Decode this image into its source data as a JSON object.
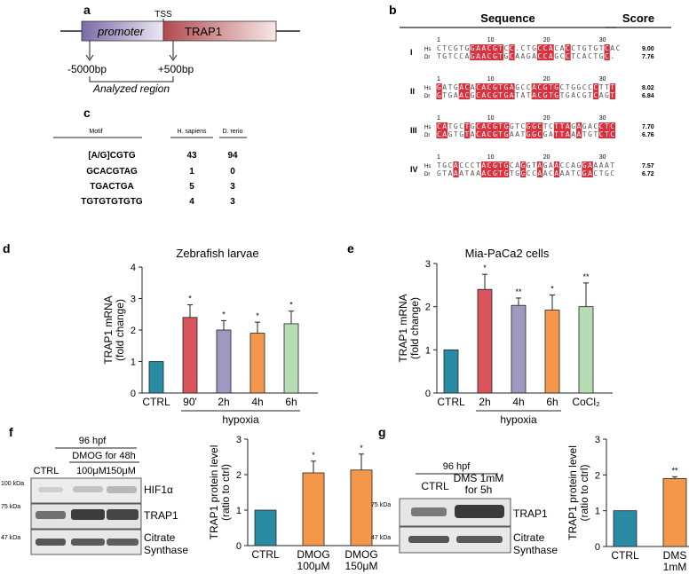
{
  "panels": {
    "a": {
      "letter": "a",
      "tss": "TSS",
      "promoter": "promoter",
      "gene": "TRAP1",
      "left_bp": "-5000bp",
      "right_bp": "+500bp",
      "region": "Analyzed region"
    },
    "b": {
      "letter": "b",
      "col_sequence": "Sequence",
      "col_score": "Score",
      "tick_labels": [
        "1",
        "10",
        "20",
        "30"
      ],
      "blocks": [
        {
          "roman": "I",
          "hs_label": "Hs",
          "dr_label": "Dr",
          "hs_seq": "CTCGTGGAACGTCC.CTGCCACACCTGTGTCAC",
          "dr_seq": "TGTCCAGAACGTGCAAGACCAGCCTCACTGC.",
          "hs_score": "9.00",
          "dr_score": "7.76"
        },
        {
          "roman": "II",
          "hs_label": "Hs",
          "dr_label": "Dr",
          "hs_seq": "GATGACACACGTGAGCCACGTGCTGGCCCTTT",
          "dr_seq": "GTGAACGCACGTGATATACGTGTGACGTCAGT",
          "hs_score": "8.02",
          "dr_score": "6.84"
        },
        {
          "roman": "III",
          "hs_label": "Hs",
          "dr_label": "Dr",
          "hs_seq": "CATGCTGCACGTGGTCGGCTCTTAGAGACCTC",
          "dr_seq": "CAGTGTACACGTGAATGGCGATTAAATGTCTC",
          "hs_score": "7.70",
          "dr_score": "6.76"
        },
        {
          "roman": "IV",
          "hs_label": "Hs",
          "dr_label": "Dr",
          "hs_seq": "TGCACCCTACGTGCAGGTAGAACCAGGAAAAT",
          "dr_seq": "GTAAATAAACGTGTGGCCAACAAATCGACTGC",
          "hs_score": "7.57",
          "dr_score": "6.72"
        }
      ]
    },
    "c": {
      "letter": "c",
      "headers": [
        "Motif",
        "H. sapiens",
        "D. rerio"
      ],
      "rows": [
        [
          "[A/G]CGTG",
          "43",
          "94"
        ],
        [
          "GCACGTAG",
          "1",
          "0"
        ],
        [
          "TGACTGA",
          "5",
          "3"
        ],
        [
          "TGTGTGTGTG",
          "4",
          "3"
        ]
      ]
    },
    "d": {
      "letter": "d"
    },
    "e": {
      "letter": "e"
    },
    "f": {
      "letter": "f",
      "hpf": "96 hpf",
      "treatment": "DMOG for 48h",
      "lanes": [
        "CTRL",
        "100μM",
        "150μM"
      ],
      "markers": [
        "100 kDa",
        "75 kDa",
        "47 kDa"
      ],
      "blot_labels": [
        "HIF1α",
        "TRAP1",
        "Citrate",
        "Synthase"
      ]
    },
    "g": {
      "letter": "g",
      "hpf": "96 hpf",
      "lanes": [
        "CTRL",
        "DMS 1mM",
        "for 5h"
      ],
      "markers": [
        "75 kDa",
        "47 kDa"
      ],
      "blot_labels": [
        "TRAP1",
        "Citrate",
        "Synthase"
      ]
    }
  },
  "chart_data": [
    {
      "id": "d",
      "type": "bar",
      "title": "Zebrafish larvae",
      "ylabel": "TRAP1 mRNA",
      "ylabel2": "(fold change)",
      "categories": [
        "CTRL",
        "90'",
        "2h",
        "4h",
        "6h"
      ],
      "values": [
        1.0,
        2.4,
        2.0,
        1.9,
        2.2
      ],
      "errors": [
        0,
        0.4,
        0.3,
        0.35,
        0.4
      ],
      "significance": [
        "",
        "*",
        "*",
        "*",
        "*"
      ],
      "colors": [
        "#2a8ca4",
        "#d9535a",
        "#9f98c0",
        "#f4974a",
        "#b5dcb3"
      ],
      "ylim": [
        0,
        4
      ],
      "yticks": [
        "0",
        "1",
        "2",
        "3",
        "4"
      ],
      "group_label": "hypoxia",
      "group_range": [
        1,
        4
      ]
    },
    {
      "id": "e",
      "type": "bar",
      "title": "Mia-PaCa2 cells",
      "ylabel": "TRAP1 mRNA",
      "ylabel2": "(fold change)",
      "categories": [
        "CTRL",
        "2h",
        "4h",
        "6h",
        "CoCl₂"
      ],
      "values": [
        1.0,
        2.4,
        2.03,
        1.92,
        2.0
      ],
      "errors": [
        0,
        0.35,
        0.17,
        0.35,
        0.55
      ],
      "significance": [
        "",
        "*",
        "**",
        "*",
        "**"
      ],
      "colors": [
        "#2a8ca4",
        "#d9535a",
        "#9f98c0",
        "#f4974a",
        "#b5dcb3"
      ],
      "ylim": [
        0,
        3
      ],
      "yticks": [
        "0",
        "1",
        "2",
        "3"
      ],
      "group_label": "hypoxia",
      "group_range": [
        1,
        3
      ]
    },
    {
      "id": "f",
      "type": "bar",
      "ylabel": "TRAP1 protein level",
      "ylabel2": "(ratio to ctrl)",
      "categories": [
        "CTRL",
        "DMOG|100μM",
        "DMOG|150μM"
      ],
      "values": [
        1.0,
        2.05,
        2.13
      ],
      "errors": [
        0,
        0.33,
        0.45
      ],
      "significance": [
        "",
        "*",
        "*"
      ],
      "colors": [
        "#2a8ca4",
        "#f4974a",
        "#f4974a"
      ],
      "ylim": [
        0,
        3
      ],
      "yticks": [
        "0",
        "1",
        "2",
        "3"
      ]
    },
    {
      "id": "g",
      "type": "bar",
      "ylabel": "TRAP1 protein level",
      "ylabel2": "(ratio to ctrl)",
      "categories": [
        "CTRL",
        "DMS|1mM"
      ],
      "values": [
        1.0,
        1.9
      ],
      "errors": [
        0,
        0.05
      ],
      "significance": [
        "",
        "**"
      ],
      "colors": [
        "#2a8ca4",
        "#f4974a"
      ],
      "ylim": [
        0,
        3
      ],
      "yticks": [
        "0",
        "1",
        "2",
        "3"
      ]
    }
  ]
}
